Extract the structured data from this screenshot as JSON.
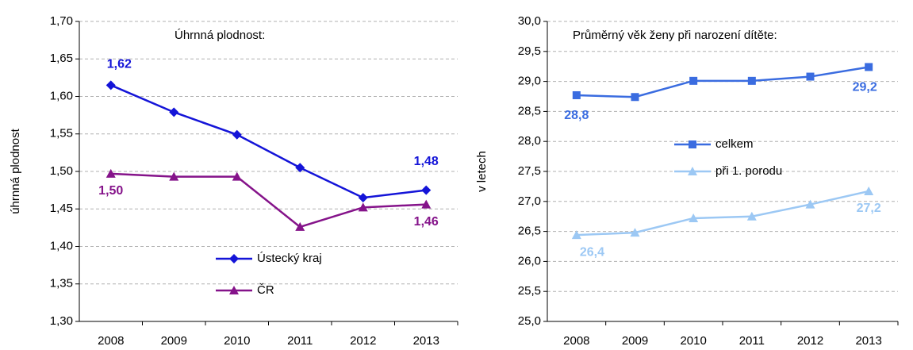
{
  "chart_data": [
    {
      "type": "line",
      "title": "Úhrnná plodnost:",
      "ylabel": "úhrnná plodnost",
      "categories": [
        "2008",
        "2009",
        "2010",
        "2011",
        "2012",
        "2013"
      ],
      "ylim": [
        1.3,
        1.7
      ],
      "yticks": [
        {
          "value": 1.3,
          "label": "1,30"
        },
        {
          "value": 1.35,
          "label": "1,35"
        },
        {
          "value": 1.4,
          "label": "1,40"
        },
        {
          "value": 1.45,
          "label": "1,45"
        },
        {
          "value": 1.5,
          "label": "1,50"
        },
        {
          "value": 1.55,
          "label": "1,55"
        },
        {
          "value": 1.6,
          "label": "1,60"
        },
        {
          "value": 1.65,
          "label": "1,65"
        },
        {
          "value": 1.7,
          "label": "1,70"
        }
      ],
      "grid": true,
      "series": [
        {
          "name": "Ústecký kraj",
          "color": "#1414d8",
          "marker": "diamond",
          "values": [
            1.615,
            1.579,
            1.549,
            1.505,
            1.465,
            1.475
          ],
          "value_labels": [
            "1,62",
            null,
            null,
            null,
            null,
            "1,48"
          ]
        },
        {
          "name": "ČR",
          "color": "#85138a",
          "marker": "triangle",
          "values": [
            1.497,
            1.493,
            1.493,
            1.426,
            1.452,
            1.456
          ],
          "value_labels": [
            "1,50",
            null,
            null,
            null,
            null,
            "1,46"
          ]
        }
      ]
    },
    {
      "type": "line",
      "title": "Průměrný věk ženy při narození dítěte:",
      "ylabel": "v letech",
      "categories": [
        "2008",
        "2009",
        "2010",
        "2011",
        "2012",
        "2013"
      ],
      "ylim": [
        25,
        30
      ],
      "yticks": [
        {
          "value": 25,
          "label": "25,0"
        },
        {
          "value": 25.5,
          "label": "25,5"
        },
        {
          "value": 26,
          "label": "26,0"
        },
        {
          "value": 26.5,
          "label": "26,5"
        },
        {
          "value": 27,
          "label": "27,0"
        },
        {
          "value": 27.5,
          "label": "27,5"
        },
        {
          "value": 28,
          "label": "28,0"
        },
        {
          "value": 28.5,
          "label": "28,5"
        },
        {
          "value": 29,
          "label": "29,0"
        },
        {
          "value": 29.5,
          "label": "29,5"
        },
        {
          "value": 30,
          "label": "30,0"
        }
      ],
      "grid": true,
      "series": [
        {
          "name": "celkem",
          "color": "#3a6ce0",
          "marker": "square",
          "values": [
            28.77,
            28.74,
            29.01,
            29.01,
            29.08,
            29.24
          ],
          "value_labels": [
            "28,8",
            null,
            null,
            null,
            null,
            "29,2"
          ]
        },
        {
          "name": "při 1. porodu",
          "color": "#9cc8f4",
          "marker": "triangle",
          "values": [
            26.44,
            26.48,
            26.72,
            26.75,
            26.95,
            27.17
          ],
          "value_labels": [
            "26,4",
            null,
            null,
            null,
            null,
            "27,2"
          ]
        }
      ]
    }
  ]
}
